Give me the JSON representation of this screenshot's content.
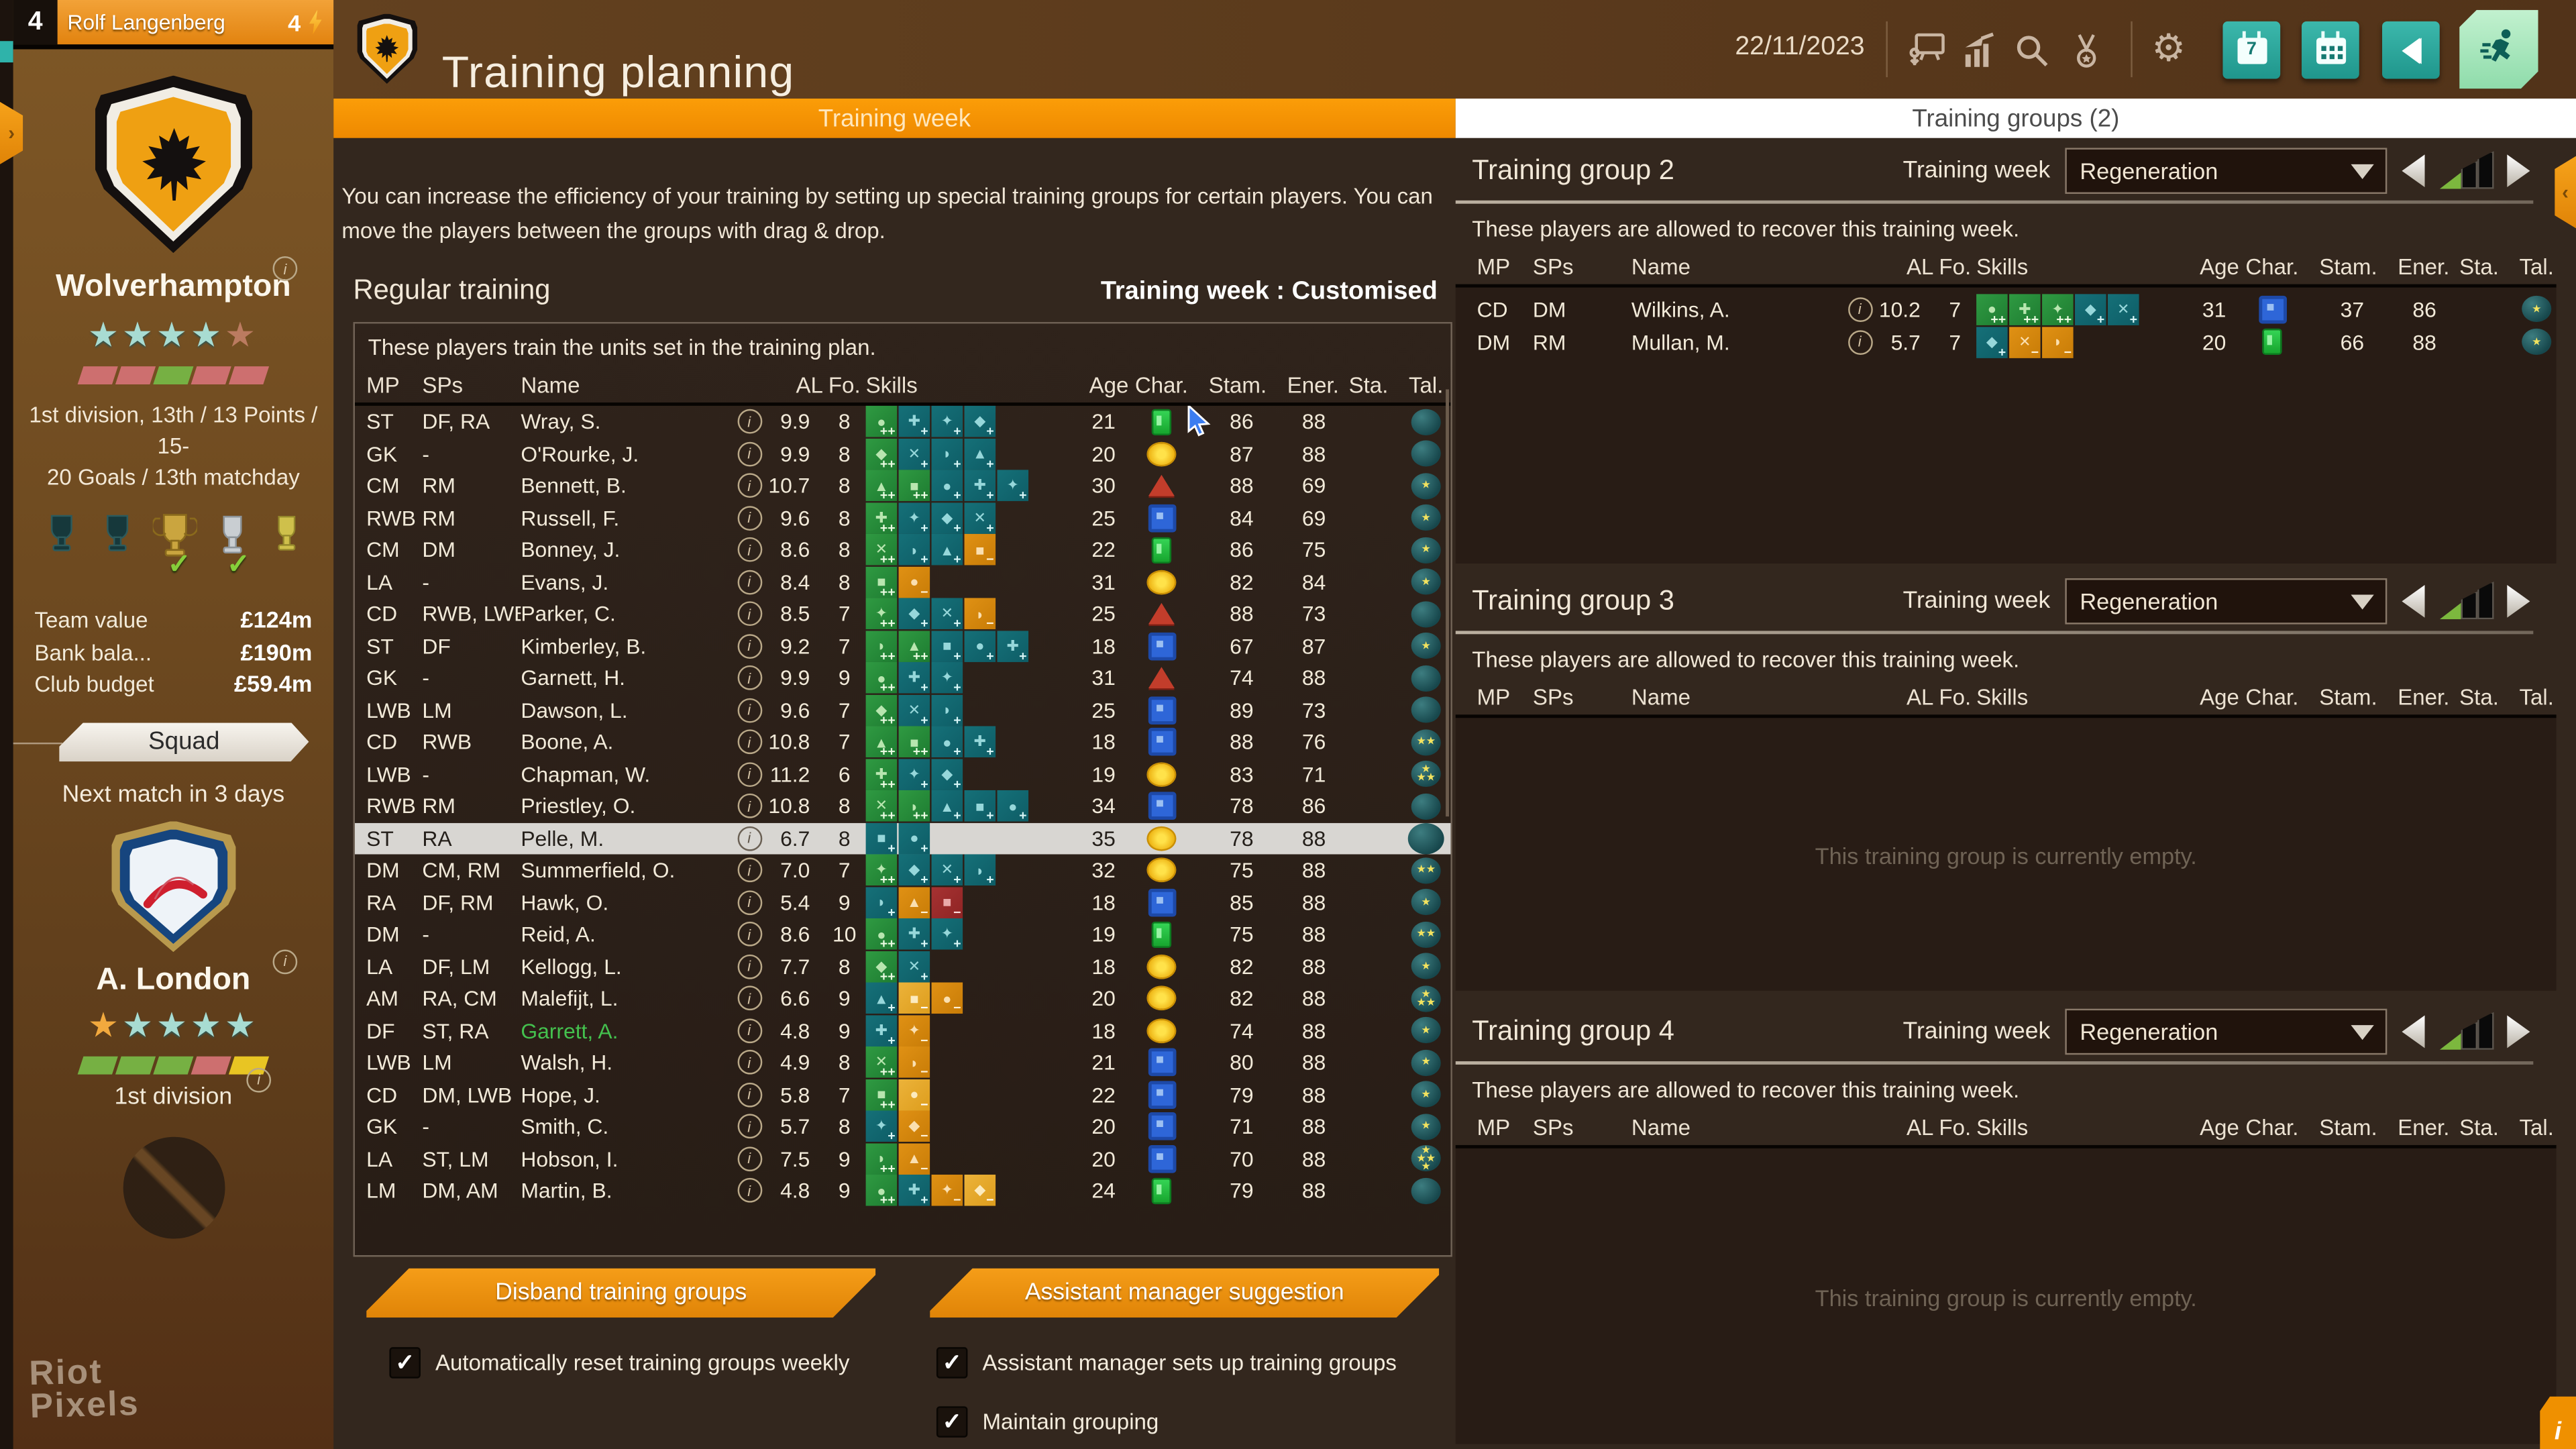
{
  "topbar": {
    "manager_level": "4",
    "manager_name": "Rolf Langenberg",
    "energy": "4",
    "title": "Training planning",
    "date": "22/11/2023",
    "header_icons": [
      "tactics-board",
      "statistics",
      "search",
      "medals",
      "settings",
      "calendar-week",
      "calendar-month",
      "rewind",
      "training-run"
    ]
  },
  "tabs": {
    "left": "Training week",
    "right": "Training groups (2)"
  },
  "sidebar": {
    "club": {
      "name": "Wolverhampton",
      "stars_teal": 4,
      "stars_bronze": 1,
      "form": [
        "red",
        "red",
        "green",
        "red",
        "red"
      ],
      "summary_line1": "1st division, 13th / 13 Points / 15-",
      "summary_line2": "20 Goals / 13th matchday"
    },
    "finance": [
      {
        "label": "Team value",
        "value": "£124m"
      },
      {
        "label": "Bank bala...",
        "value": "£190m"
      },
      {
        "label": "Club budget",
        "value": "£59.4m"
      }
    ],
    "squad_button": "Squad",
    "next_match": "Next match in 3 days",
    "opponent": {
      "name": "A. London",
      "stars_gold": 1,
      "stars_teal": 4,
      "form": [
        "green",
        "green",
        "green",
        "red",
        "yellow"
      ],
      "division": "1st division"
    },
    "watermark_line1": "Riot",
    "watermark_line2": "Pixels"
  },
  "main": {
    "description": "You can increase the efficiency of your training by setting up special training groups for certain players. You can move the players between the groups with drag & drop.",
    "section_title": "Regular training",
    "week_label": "Training week : Customised",
    "table_note": "These players train the units set in the training plan.",
    "columns": [
      "MP",
      "SPs",
      "Name",
      "AL",
      "Fo.",
      "Skills",
      "Age",
      "Char.",
      "Stam.",
      "Ener.",
      "Sta.",
      "Tal."
    ],
    "players": [
      {
        "mp": "ST",
        "sps": "DF, RA",
        "name": "Wray, S.",
        "al": "9.9",
        "fo": "8",
        "age": "21",
        "char": "green-card",
        "stam": "86",
        "ener": "88",
        "sta": "",
        "tal": 0,
        "skills": [
          "g",
          "t",
          "t",
          "t"
        ]
      },
      {
        "mp": "GK",
        "sps": "-",
        "name": "O'Rourke, J.",
        "al": "9.9",
        "fo": "8",
        "age": "20",
        "char": "yellow-circle",
        "stam": "87",
        "ener": "88",
        "sta": "",
        "tal": 0,
        "skills": [
          "g",
          "t",
          "t",
          "t"
        ]
      },
      {
        "mp": "CM",
        "sps": "RM",
        "name": "Bennett, B.",
        "al": "10.7",
        "fo": "8",
        "age": "30",
        "char": "red-triangle",
        "stam": "88",
        "ener": "69",
        "sta": "",
        "tal": 1,
        "skills": [
          "g",
          "g",
          "t",
          "t",
          "t"
        ]
      },
      {
        "mp": "RWB",
        "sps": "RM",
        "name": "Russell, F.",
        "al": "9.6",
        "fo": "8",
        "age": "25",
        "char": "blue-square",
        "stam": "84",
        "ener": "69",
        "sta": "",
        "tal": 1,
        "skills": [
          "g",
          "t",
          "t",
          "t"
        ]
      },
      {
        "mp": "CM",
        "sps": "DM",
        "name": "Bonney, J.",
        "al": "8.6",
        "fo": "8",
        "age": "22",
        "char": "green-card",
        "stam": "86",
        "ener": "75",
        "sta": "",
        "tal": 1,
        "skills": [
          "g",
          "t",
          "t",
          "o"
        ]
      },
      {
        "mp": "LA",
        "sps": "-",
        "name": "Evans, J.",
        "al": "8.4",
        "fo": "8",
        "age": "31",
        "char": "yellow-circle",
        "stam": "82",
        "ener": "84",
        "sta": "",
        "tal": 1,
        "skills": [
          "g",
          "o"
        ]
      },
      {
        "mp": "CD",
        "sps": "RWB, LWB",
        "name": "Parker, C.",
        "al": "8.5",
        "fo": "7",
        "age": "25",
        "char": "red-triangle",
        "stam": "88",
        "ener": "73",
        "sta": "",
        "tal": 0,
        "skills": [
          "g",
          "t",
          "t",
          "o"
        ]
      },
      {
        "mp": "ST",
        "sps": "DF",
        "name": "Kimberley, B.",
        "al": "9.2",
        "fo": "7",
        "age": "18",
        "char": "blue-square",
        "stam": "67",
        "ener": "87",
        "sta": "",
        "tal": 1,
        "skills": [
          "g",
          "g",
          "t",
          "t",
          "t"
        ]
      },
      {
        "mp": "GK",
        "sps": "-",
        "name": "Garnett, H.",
        "al": "9.9",
        "fo": "9",
        "age": "31",
        "char": "red-triangle",
        "stam": "74",
        "ener": "88",
        "sta": "",
        "tal": 0,
        "skills": [
          "g",
          "t",
          "t"
        ]
      },
      {
        "mp": "LWB",
        "sps": "LM",
        "name": "Dawson, L.",
        "al": "9.6",
        "fo": "7",
        "age": "25",
        "char": "blue-square",
        "stam": "89",
        "ener": "73",
        "sta": "",
        "tal": 0,
        "skills": [
          "g",
          "t",
          "t"
        ]
      },
      {
        "mp": "CD",
        "sps": "RWB",
        "name": "Boone, A.",
        "al": "10.8",
        "fo": "7",
        "age": "18",
        "char": "blue-square",
        "stam": "88",
        "ener": "76",
        "sta": "",
        "tal": 2,
        "skills": [
          "g",
          "g",
          "t",
          "t"
        ]
      },
      {
        "mp": "LWB",
        "sps": "-",
        "name": "Chapman, W.",
        "al": "11.2",
        "fo": "6",
        "age": "19",
        "char": "yellow-circle",
        "stam": "83",
        "ener": "71",
        "sta": "",
        "tal": 3,
        "skills": [
          "g",
          "t",
          "t"
        ]
      },
      {
        "mp": "RWB",
        "sps": "RM",
        "name": "Priestley, O.",
        "al": "10.8",
        "fo": "8",
        "age": "34",
        "char": "blue-square",
        "stam": "78",
        "ener": "86",
        "sta": "",
        "tal": 0,
        "skills": [
          "g",
          "g",
          "t",
          "t",
          "t"
        ]
      },
      {
        "mp": "ST",
        "sps": "RA",
        "name": "Pelle, M.",
        "al": "6.7",
        "fo": "8",
        "age": "35",
        "char": "yellow-circle",
        "stam": "78",
        "ener": "88",
        "sta": "",
        "tal": 0,
        "skills": [
          "t",
          "t"
        ],
        "highlight": true
      },
      {
        "mp": "DM",
        "sps": "CM, RM",
        "name": "Summerfield, O.",
        "al": "7.0",
        "fo": "7",
        "age": "32",
        "char": "yellow-circle",
        "stam": "75",
        "ener": "88",
        "sta": "",
        "tal": 2,
        "skills": [
          "g",
          "t",
          "t",
          "t"
        ]
      },
      {
        "mp": "RA",
        "sps": "DF, RM",
        "name": "Hawk, O.",
        "al": "5.4",
        "fo": "9",
        "age": "18",
        "char": "blue-square",
        "stam": "85",
        "ener": "88",
        "sta": "",
        "tal": 1,
        "skills": [
          "t",
          "o",
          "r"
        ]
      },
      {
        "mp": "DM",
        "sps": "-",
        "name": "Reid, A.",
        "al": "8.6",
        "fo": "10",
        "age": "19",
        "char": "green-card",
        "stam": "75",
        "ener": "88",
        "sta": "",
        "tal": 2,
        "skills": [
          "g",
          "t",
          "t"
        ]
      },
      {
        "mp": "LA",
        "sps": "DF, LM",
        "name": "Kellogg, L.",
        "al": "7.7",
        "fo": "8",
        "age": "18",
        "char": "yellow-circle",
        "stam": "82",
        "ener": "88",
        "sta": "",
        "tal": 1,
        "skills": [
          "g",
          "t"
        ]
      },
      {
        "mp": "AM",
        "sps": "RA, CM",
        "name": "Malefijt, L.",
        "al": "6.6",
        "fo": "9",
        "age": "20",
        "char": "yellow-circle",
        "stam": "82",
        "ener": "88",
        "sta": "",
        "tal": 3,
        "skills": [
          "t",
          "y",
          "o"
        ]
      },
      {
        "mp": "DF",
        "sps": "ST, RA",
        "name": "Garrett, A.",
        "al": "4.8",
        "fo": "9",
        "age": "18",
        "char": "yellow-circle",
        "stam": "74",
        "ener": "88",
        "sta": "",
        "tal": 1,
        "skills": [
          "t",
          "o"
        ],
        "name_green": true
      },
      {
        "mp": "LWB",
        "sps": "LM",
        "name": "Walsh, H.",
        "al": "4.9",
        "fo": "8",
        "age": "21",
        "char": "blue-square",
        "stam": "80",
        "ener": "88",
        "sta": "",
        "tal": 1,
        "skills": [
          "g",
          "o"
        ]
      },
      {
        "mp": "CD",
        "sps": "DM, LWB",
        "name": "Hope, J.",
        "al": "5.8",
        "fo": "7",
        "age": "22",
        "char": "blue-square",
        "stam": "79",
        "ener": "88",
        "sta": "",
        "tal": 1,
        "skills": [
          "g",
          "y"
        ]
      },
      {
        "mp": "GK",
        "sps": "-",
        "name": "Smith, C.",
        "al": "5.7",
        "fo": "8",
        "age": "20",
        "char": "blue-square",
        "stam": "71",
        "ener": "88",
        "sta": "",
        "tal": 1,
        "skills": [
          "t",
          "o"
        ]
      },
      {
        "mp": "LA",
        "sps": "ST, LM",
        "name": "Hobson, I.",
        "al": "7.5",
        "fo": "9",
        "age": "20",
        "char": "blue-square",
        "stam": "70",
        "ener": "88",
        "sta": "",
        "tal": 4,
        "skills": [
          "g",
          "o"
        ]
      },
      {
        "mp": "LM",
        "sps": "DM, AM",
        "name": "Martin, B.",
        "al": "4.8",
        "fo": "9",
        "age": "24",
        "char": "green-card",
        "stam": "79",
        "ener": "88",
        "sta": "",
        "tal": 0,
        "skills": [
          "g",
          "t",
          "o",
          "y"
        ]
      }
    ],
    "buttons": {
      "disband": "Disband training groups",
      "assistant": "Assistant manager suggestion"
    },
    "checkboxes": [
      {
        "label": "Automatically reset training groups weekly",
        "checked": true
      },
      {
        "label": "Assistant manager sets up training groups",
        "checked": true
      },
      {
        "label": "Maintain grouping",
        "checked": true
      }
    ]
  },
  "groups": {
    "week_label": "Training week",
    "note": "These players are allowed to recover this training week.",
    "empty_text": "This training group is currently empty.",
    "items": [
      {
        "title": "Training group 2",
        "week": "Regeneration",
        "players": [
          {
            "mp": "CD",
            "sps": "DM",
            "name": "Wilkins, A.",
            "al": "10.2",
            "fo": "7",
            "age": "31",
            "char": "blue-square",
            "stam": "37",
            "ener": "86",
            "sta": "",
            "tal": 1,
            "skills": [
              "g",
              "g",
              "g",
              "t",
              "t"
            ]
          },
          {
            "mp": "DM",
            "sps": "RM",
            "name": "Mullan, M.",
            "al": "5.7",
            "fo": "7",
            "age": "20",
            "char": "green-card",
            "stam": "66",
            "ener": "88",
            "sta": "",
            "tal": 1,
            "skills": [
              "t",
              "o",
              "o"
            ]
          }
        ]
      },
      {
        "title": "Training group 3",
        "week": "Regeneration",
        "players": []
      },
      {
        "title": "Training group 4",
        "week": "Regeneration",
        "players": []
      }
    ]
  },
  "colors": {
    "accent_orange": "#EF9000",
    "teal_button": "#2AA79E",
    "active_button_mint": "#9FE3B8",
    "highlight_row": "#D8D6D2",
    "green_player_name": "#44C14E",
    "sidebar_brown": "#6E4A20"
  }
}
